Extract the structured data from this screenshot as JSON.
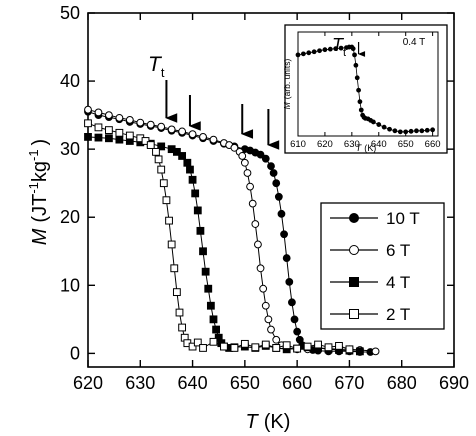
{
  "chart_data": [
    {
      "type": "line",
      "xlabel_symbol": "T",
      "xlabel_unit": "(K)",
      "ylabel_symbol": "M",
      "ylabel_unit": "(JT",
      "ylabel_unit_sup1": "-1",
      "ylabel_unit_mid": "kg",
      "ylabel_unit_sup2": "-1",
      "ylabel_unit_end": ")",
      "xlim": [
        620,
        690
      ],
      "ylim": [
        -2,
        50
      ],
      "x_ticks": [
        "620",
        "630",
        "640",
        "650",
        "660",
        "670",
        "680",
        "690"
      ],
      "y_ticks": [
        "0",
        "10",
        "20",
        "30",
        "40",
        "50"
      ],
      "annotation_main": "T",
      "annotation_sub": "t",
      "arrows_x": [
        635,
        639.5,
        649.5,
        654.5
      ],
      "legend_position": "right",
      "series": [
        {
          "name": "10 T",
          "marker": "filled-circle",
          "x": [
            620,
            622,
            624,
            626,
            628,
            630,
            632,
            634,
            636,
            638,
            640,
            642,
            644,
            646,
            648,
            650,
            651,
            652,
            653,
            654,
            655,
            655.5,
            656,
            656.5,
            657,
            657.5,
            658,
            658.5,
            659,
            659.5,
            660,
            660.5,
            661,
            662,
            663,
            664,
            666,
            668,
            670,
            672,
            674
          ],
          "y": [
            35.5,
            35.0,
            34.7,
            34.4,
            34.0,
            33.7,
            33.4,
            33.1,
            32.7,
            32.4,
            32.0,
            31.6,
            31.2,
            30.8,
            30.4,
            30.0,
            29.8,
            29.5,
            29.2,
            28.6,
            27.5,
            26.5,
            25.0,
            23.0,
            20.5,
            17.5,
            14.0,
            10.5,
            7.5,
            5.0,
            3.2,
            2.0,
            1.2,
            0.7,
            0.5,
            0.4,
            0.3,
            0.3,
            0.3,
            0.2,
            0.2
          ]
        },
        {
          "name": "6 T",
          "marker": "open-circle",
          "x": [
            620,
            622,
            624,
            626,
            628,
            630,
            632,
            634,
            636,
            638,
            640,
            642,
            644,
            646,
            647,
            648,
            649,
            649.5,
            650,
            650.5,
            651,
            651.5,
            652,
            652.5,
            653,
            653.5,
            654,
            654.5,
            655,
            656,
            657,
            658,
            660,
            662,
            664,
            666,
            668,
            670,
            672,
            675
          ],
          "y": [
            35.8,
            35.4,
            35.0,
            34.6,
            34.3,
            33.9,
            33.6,
            33.3,
            32.9,
            32.6,
            32.2,
            31.8,
            31.4,
            30.9,
            30.6,
            30.2,
            29.6,
            29.0,
            28.0,
            26.5,
            24.5,
            22.0,
            19.0,
            16.0,
            12.5,
            9.5,
            7.0,
            5.0,
            3.5,
            2.0,
            1.2,
            0.8,
            0.6,
            0.6,
            0.8,
            0.7,
            0.6,
            0.6,
            0.5,
            0.3
          ]
        },
        {
          "name": "4 T",
          "marker": "filled-square",
          "x": [
            620,
            622,
            624,
            626,
            628,
            630,
            632,
            634,
            636,
            637,
            638,
            639,
            639.5,
            640,
            640.5,
            641,
            641.5,
            642,
            642.5,
            643,
            643.5,
            644,
            644.5,
            645,
            645.5,
            646,
            647,
            648,
            650,
            652,
            654,
            656,
            658,
            660,
            662,
            664,
            666,
            668,
            670,
            672
          ],
          "y": [
            31.8,
            31.7,
            31.6,
            31.4,
            31.2,
            31.0,
            30.8,
            30.4,
            30.0,
            29.6,
            29.0,
            28.0,
            27.0,
            25.5,
            23.5,
            21.0,
            18.0,
            15.0,
            12.0,
            9.5,
            7.0,
            5.0,
            3.5,
            2.3,
            1.5,
            1.0,
            0.8,
            0.9,
            1.0,
            0.8,
            1.1,
            0.8,
            0.6,
            0.7,
            0.9,
            0.8,
            0.6,
            0.5,
            0.4,
            0.3
          ]
        },
        {
          "name": "2 T",
          "marker": "open-square",
          "x": [
            620,
            622,
            624,
            626,
            628,
            630,
            631,
            632,
            633,
            633.5,
            634,
            634.5,
            635,
            635.5,
            636,
            636.5,
            637,
            637.5,
            638,
            638.5,
            639,
            640,
            641,
            642,
            644,
            646,
            648,
            650,
            652,
            654,
            656,
            658,
            660,
            662,
            664,
            666,
            668,
            670
          ],
          "y": [
            33.8,
            33.2,
            32.8,
            32.4,
            32.0,
            31.6,
            31.2,
            30.6,
            29.6,
            28.5,
            27.0,
            25.0,
            22.5,
            19.5,
            16.0,
            12.5,
            9.0,
            6.0,
            3.8,
            2.3,
            1.5,
            1.0,
            1.6,
            0.8,
            1.7,
            1.0,
            0.8,
            1.4,
            0.9,
            1.3,
            0.8,
            1.2,
            0.7,
            1.0,
            1.3,
            0.9,
            1.1,
            0.6
          ]
        }
      ]
    },
    {
      "type": "line",
      "xlabel_symbol": "T",
      "xlabel_unit": "(K)",
      "ylabel_symbol": "M",
      "ylabel_unit": "(arb. units)",
      "field_label": "0.4 T",
      "annotation_main": "T",
      "annotation_sub": "t",
      "arrow_x": 632.5,
      "xlim": [
        610,
        662
      ],
      "ylim": [
        0,
        1
      ],
      "x_ticks": [
        "610",
        "620",
        "630",
        "640",
        "650",
        "660"
      ],
      "series": [
        {
          "marker": "filled-circle",
          "x": [
            610,
            612,
            614,
            616,
            618,
            620,
            622,
            624,
            626,
            628,
            629,
            630,
            630.5,
            631,
            631.5,
            632,
            632.5,
            633,
            633.5,
            634,
            634.5,
            635,
            636,
            637,
            638,
            640,
            642,
            644,
            646,
            648,
            650,
            652,
            654,
            656,
            658,
            660
          ],
          "y": [
            0.78,
            0.79,
            0.8,
            0.81,
            0.82,
            0.83,
            0.835,
            0.84,
            0.845,
            0.85,
            0.855,
            0.855,
            0.84,
            0.78,
            0.68,
            0.56,
            0.44,
            0.33,
            0.25,
            0.2,
            0.18,
            0.17,
            0.165,
            0.15,
            0.135,
            0.11,
            0.085,
            0.065,
            0.05,
            0.04,
            0.04,
            0.045,
            0.05,
            0.05,
            0.055,
            0.06
          ]
        }
      ]
    }
  ]
}
